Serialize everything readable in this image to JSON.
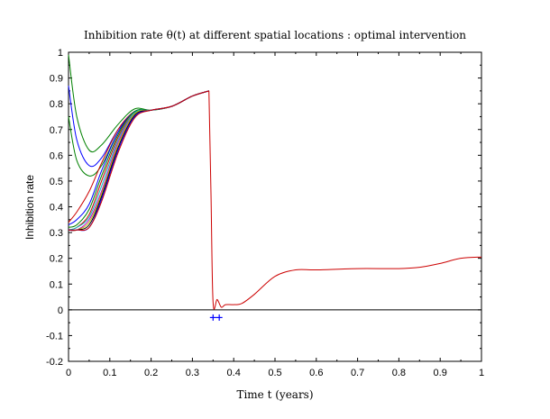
{
  "chart_data": {
    "type": "line",
    "title": "Inhibition rate θ(t) at different spatial locations :  optimal intervention",
    "xlabel": "Time t  (years)",
    "ylabel": "Inhibition rate",
    "xlim": [
      0,
      1
    ],
    "ylim": [
      -0.2,
      1
    ],
    "x_ticks": [
      0,
      0.1,
      0.2,
      0.3,
      0.4,
      0.5,
      0.6,
      0.7,
      0.8,
      0.9,
      1
    ],
    "x_tick_labels": [
      "0",
      "0.1",
      "0.2",
      "0.3",
      "0.4",
      "0.5",
      "0.6",
      "0.7",
      "0.8",
      "0.9",
      "1"
    ],
    "y_ticks": [
      -0.2,
      -0.1,
      0,
      0.1,
      0.2,
      0.3,
      0.4,
      0.5,
      0.6,
      0.7,
      0.8,
      0.9,
      1
    ],
    "y_tick_labels": [
      "-0.2",
      "-0.1",
      "0",
      "0.1",
      "0.2",
      "0.3",
      "0.4",
      "0.5",
      "0.6",
      "0.7",
      "0.8",
      "0.9",
      "1"
    ],
    "grid": false,
    "zero_line": true,
    "series": [
      {
        "color": "#008000",
        "x": [
          0,
          0.02,
          0.05,
          0.08,
          0.12,
          0.16,
          0.2,
          0.25,
          0.3,
          0.34
        ],
        "y": [
          0.99,
          0.75,
          0.62,
          0.64,
          0.72,
          0.78,
          0.775,
          0.79,
          0.83,
          0.85
        ]
      },
      {
        "color": "#0000ff",
        "x": [
          0,
          0.02,
          0.05,
          0.08,
          0.12,
          0.16,
          0.2,
          0.25,
          0.3,
          0.34
        ],
        "y": [
          0.87,
          0.66,
          0.56,
          0.59,
          0.7,
          0.77,
          0.775,
          0.79,
          0.83,
          0.85
        ]
      },
      {
        "color": "#008000",
        "x": [
          0,
          0.02,
          0.05,
          0.08,
          0.12,
          0.16,
          0.2,
          0.25,
          0.3,
          0.34
        ],
        "y": [
          0.75,
          0.58,
          0.52,
          0.56,
          0.69,
          0.77,
          0.775,
          0.79,
          0.83,
          0.85
        ]
      },
      {
        "color": "#cc0000",
        "x": [
          0,
          0.02,
          0.05,
          0.08,
          0.12,
          0.16,
          0.2,
          0.25,
          0.3,
          0.34
        ],
        "y": [
          0.34,
          0.38,
          0.46,
          0.57,
          0.7,
          0.77,
          0.775,
          0.79,
          0.83,
          0.85
        ]
      },
      {
        "color": "#0000ff",
        "x": [
          0,
          0.02,
          0.05,
          0.08,
          0.12,
          0.16,
          0.2,
          0.25,
          0.3,
          0.34
        ],
        "y": [
          0.33,
          0.35,
          0.41,
          0.54,
          0.69,
          0.77,
          0.775,
          0.79,
          0.83,
          0.85
        ]
      },
      {
        "color": "#008000",
        "x": [
          0,
          0.02,
          0.05,
          0.08,
          0.12,
          0.16,
          0.2,
          0.25,
          0.3,
          0.34
        ],
        "y": [
          0.32,
          0.33,
          0.39,
          0.52,
          0.68,
          0.77,
          0.775,
          0.79,
          0.83,
          0.85
        ]
      },
      {
        "color": "#cc0000",
        "x": [
          0,
          0.02,
          0.05,
          0.08,
          0.12,
          0.16,
          0.2,
          0.25,
          0.3,
          0.34
        ],
        "y": [
          0.31,
          0.32,
          0.37,
          0.5,
          0.67,
          0.765,
          0.775,
          0.79,
          0.83,
          0.85
        ]
      },
      {
        "color": "#00bfbf",
        "x": [
          0,
          0.02,
          0.05,
          0.08,
          0.12,
          0.16,
          0.2,
          0.25,
          0.3,
          0.34
        ],
        "y": [
          0.31,
          0.32,
          0.36,
          0.48,
          0.66,
          0.765,
          0.775,
          0.79,
          0.83,
          0.85
        ]
      },
      {
        "color": "#bf00bf",
        "x": [
          0,
          0.02,
          0.05,
          0.08,
          0.12,
          0.16,
          0.2,
          0.25,
          0.3,
          0.34
        ],
        "y": [
          0.31,
          0.31,
          0.35,
          0.46,
          0.65,
          0.76,
          0.775,
          0.79,
          0.83,
          0.85
        ]
      },
      {
        "color": "#bfbf00",
        "x": [
          0,
          0.02,
          0.05,
          0.08,
          0.12,
          0.16,
          0.2,
          0.25,
          0.3,
          0.34
        ],
        "y": [
          0.31,
          0.31,
          0.34,
          0.45,
          0.64,
          0.76,
          0.775,
          0.79,
          0.83,
          0.85
        ]
      },
      {
        "color": "#000000",
        "x": [
          0,
          0.02,
          0.05,
          0.08,
          0.12,
          0.16,
          0.2,
          0.25,
          0.3,
          0.34
        ],
        "y": [
          0.31,
          0.31,
          0.33,
          0.44,
          0.63,
          0.755,
          0.775,
          0.79,
          0.83,
          0.85
        ]
      },
      {
        "color": "#0000ff",
        "x": [
          0,
          0.02,
          0.05,
          0.08,
          0.12,
          0.16,
          0.2,
          0.25,
          0.3,
          0.34
        ],
        "y": [
          0.31,
          0.31,
          0.32,
          0.43,
          0.62,
          0.75,
          0.775,
          0.79,
          0.83,
          0.85
        ]
      },
      {
        "color": "#cc0000",
        "x": [
          0,
          0.02,
          0.05,
          0.08,
          0.12,
          0.16,
          0.2,
          0.25,
          0.3,
          0.34
        ],
        "y": [
          0.31,
          0.31,
          0.32,
          0.42,
          0.61,
          0.745,
          0.775,
          0.79,
          0.83,
          0.85
        ]
      },
      {
        "color": "#cc0000",
        "x": [
          0.34,
          0.345,
          0.35,
          0.36,
          0.37,
          0.38,
          0.4,
          0.42,
          0.45,
          0.5,
          0.55,
          0.6,
          0.7,
          0.8,
          0.85,
          0.9,
          0.95,
          1.0
        ],
        "y": [
          0.85,
          0.45,
          0.03,
          0.04,
          0.01,
          0.02,
          0.02,
          0.025,
          0.06,
          0.13,
          0.155,
          0.155,
          0.16,
          0.16,
          0.165,
          0.18,
          0.2,
          0.205
        ]
      }
    ],
    "markers": {
      "symbol": "+",
      "color": "#0000ff",
      "x": [
        0.35,
        0.365
      ],
      "y": [
        -0.03,
        -0.03
      ]
    }
  }
}
